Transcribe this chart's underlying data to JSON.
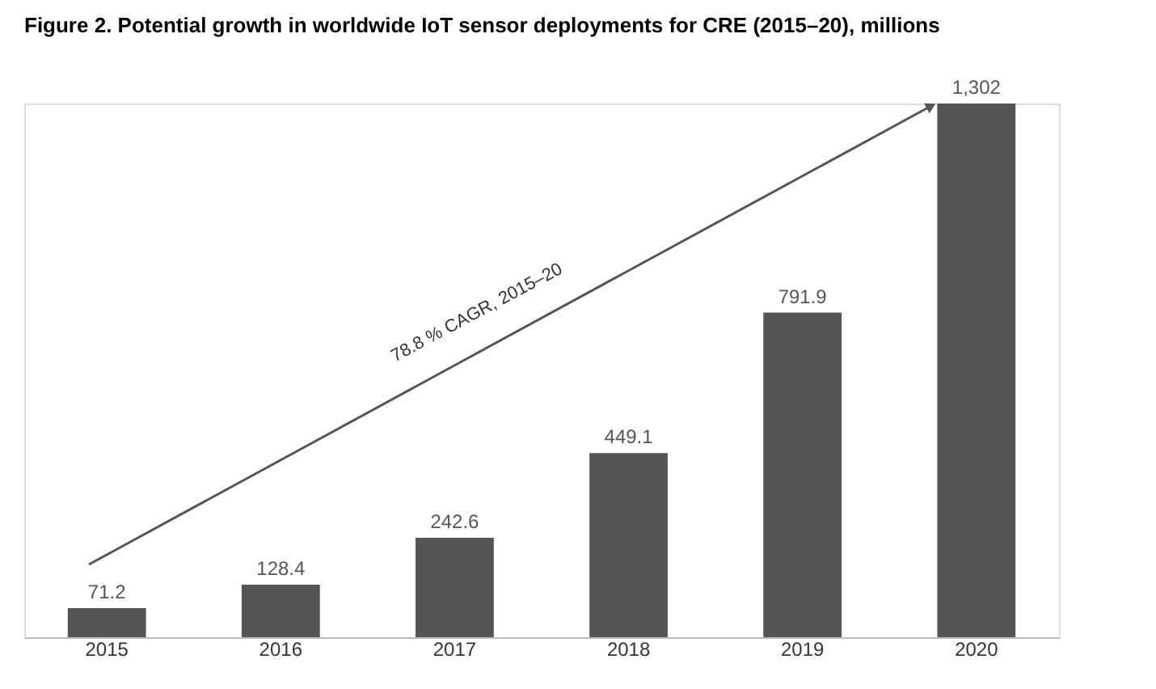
{
  "chart_data": {
    "type": "bar",
    "title": "Figure 2. Potential growth in worldwide IoT sensor deployments for CRE (2015–20), millions",
    "categories": [
      "2015",
      "2016",
      "2017",
      "2018",
      "2019",
      "2020"
    ],
    "values": [
      71.2,
      128.4,
      242.6,
      449.1,
      791.9,
      1302
    ],
    "value_labels": [
      "71.2",
      "128.4",
      "242.6",
      "449.1",
      "791.9",
      "1,302"
    ],
    "color": "#555555",
    "annotations": [
      "78.8 % CAGR, 2015–20"
    ],
    "grid": false
  }
}
